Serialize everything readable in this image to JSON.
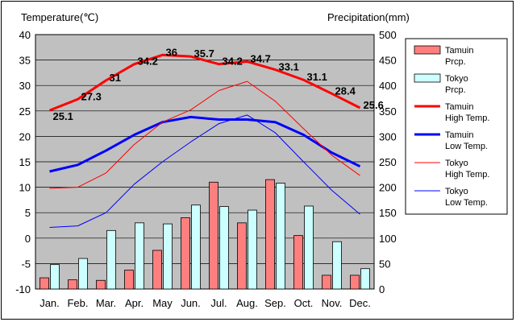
{
  "chart_data": {
    "type": "bar+line",
    "categories": [
      "Jan.",
      "Feb.",
      "Mar.",
      "Apr.",
      "May",
      "Jun.",
      "Jul.",
      "Aug.",
      "Sep.",
      "Oct.",
      "Nov.",
      "Dec."
    ],
    "left_axis": {
      "label": "Temperature(℃)",
      "ylim": [
        -10,
        40
      ],
      "ticks": [
        "40",
        "35",
        "30",
        "25",
        "20",
        "15",
        "10",
        "5",
        "0",
        "-5",
        "-10"
      ]
    },
    "right_axis": {
      "label": "Precipitation(mm)",
      "ylim": [
        0,
        500
      ],
      "ticks": [
        "500",
        "450",
        "400",
        "350",
        "300",
        "250",
        "200",
        "150",
        "100",
        "50",
        "0"
      ]
    },
    "grid": true,
    "legend_position": "right",
    "bars": [
      {
        "name": "Tamuin\nPrcp.",
        "color": "#ff7f7f",
        "values": [
          22,
          18,
          17,
          37,
          76,
          140,
          210,
          130,
          215,
          105,
          27,
          27
        ]
      },
      {
        "name": "Tokyo\nPrcp.",
        "color": "#ccffff",
        "values": [
          48,
          60,
          115,
          130,
          128,
          165,
          162,
          155,
          208,
          163,
          93,
          40
        ]
      }
    ],
    "lines": [
      {
        "name": "Tamuin\nHigh Temp.",
        "color": "#ff0000",
        "width": 3,
        "values": [
          25.1,
          27.3,
          31,
          34.2,
          36,
          35.7,
          34.2,
          34.7,
          33.1,
          31.1,
          28.4,
          25.6
        ],
        "labels": [
          "25.1",
          "27.3",
          "31",
          "34.2",
          "36",
          "35.7",
          "34.2",
          "34.7",
          "33.1",
          "31.1",
          "28.4",
          "25.6"
        ]
      },
      {
        "name": "Tamuin\nLow Temp.",
        "color": "#0000ff",
        "width": 3,
        "values": [
          13.1,
          14.4,
          17.2,
          20.3,
          22.8,
          23.8,
          23.3,
          23.3,
          22.8,
          20.3,
          16.8,
          14.1
        ]
      },
      {
        "name": "Tokyo\nHigh Temp.",
        "color": "#ff0000",
        "width": 1,
        "values": [
          9.8,
          10.0,
          12.8,
          18.4,
          22.8,
          25.2,
          29.0,
          30.8,
          26.9,
          21.5,
          16.3,
          12.3
        ]
      },
      {
        "name": "Tokyo\nLow Temp.",
        "color": "#0000ff",
        "width": 1,
        "values": [
          2.1,
          2.4,
          5.0,
          10.6,
          15.0,
          18.9,
          22.5,
          24.2,
          20.7,
          15.0,
          9.4,
          4.7
        ]
      }
    ]
  }
}
